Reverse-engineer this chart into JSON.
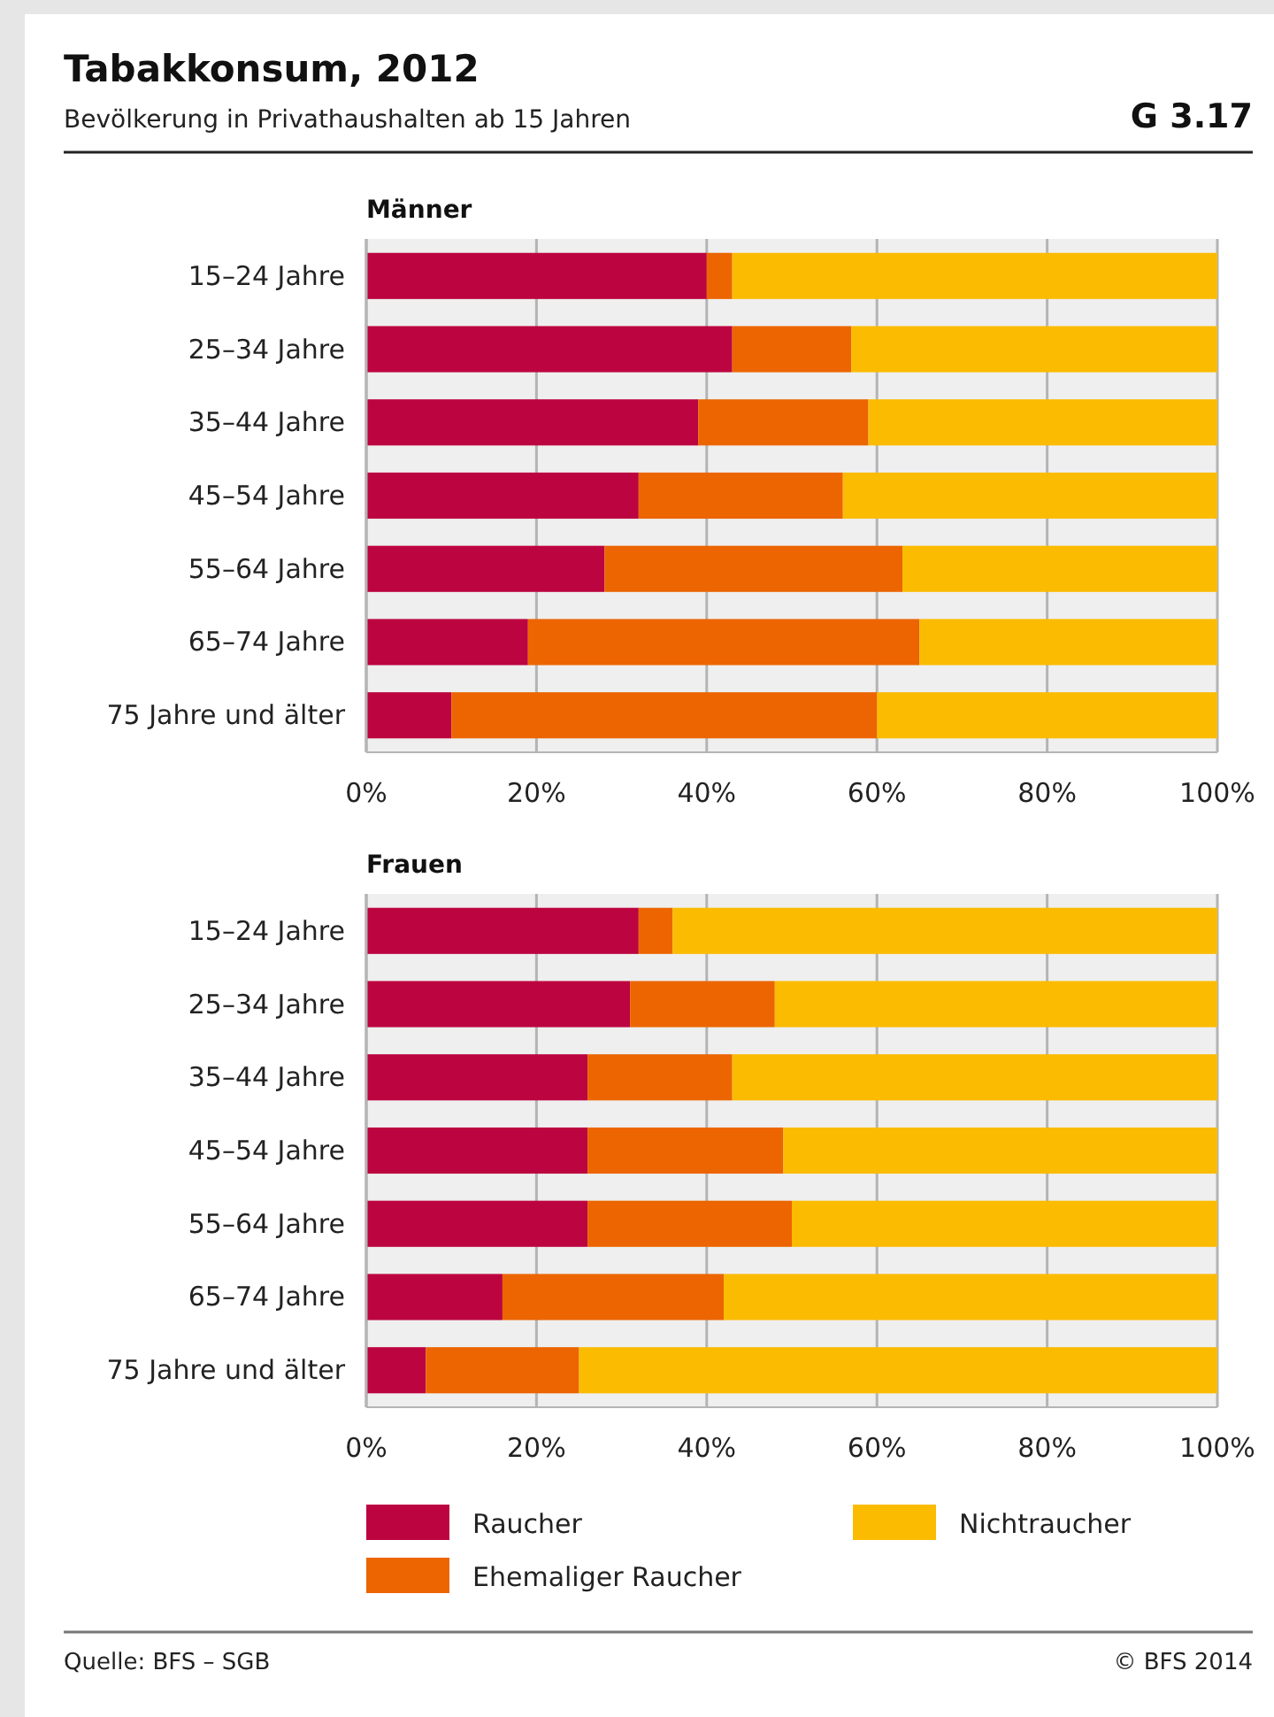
{
  "chart_data": [
    {
      "type": "other",
      "title": "Tabakkonsum, 2012",
      "subtitle": "Bevölkerung in Privathaushalten ab 15 Jahren",
      "annotations": [
        "G 3.17"
      ]
    },
    {
      "type": "bar",
      "orientation": "horizontal",
      "stacked": true,
      "title": "Männer",
      "categories": [
        "15–24 Jahre",
        "25–34 Jahre",
        "35–44 Jahre",
        "45–54 Jahre",
        "55–64 Jahre",
        "65–74 Jahre",
        "75 Jahre und älter"
      ],
      "series": [
        {
          "color": "#bc0440",
          "values": [
            40,
            43,
            39,
            32,
            28,
            19,
            10
          ]
        },
        {
          "color": "#ec6500",
          "values": [
            3,
            14,
            20,
            24,
            35,
            46,
            50
          ]
        },
        {
          "color": "#fbbb00",
          "values": [
            57,
            43,
            41,
            44,
            37,
            35,
            40
          ]
        }
      ],
      "xlim": [
        0,
        100
      ],
      "xticks": [
        {
          "value": 0,
          "label": "0%"
        },
        {
          "value": 20,
          "label": "20%"
        },
        {
          "value": 40,
          "label": "40%"
        },
        {
          "value": 60,
          "label": "60%"
        },
        {
          "value": 80,
          "label": "80%"
        },
        {
          "value": 100,
          "label": "100%"
        }
      ],
      "grid": "x",
      "legend": false
    },
    {
      "type": "bar",
      "orientation": "horizontal",
      "stacked": true,
      "title": "Frauen",
      "categories": [
        "15–24 Jahre",
        "25–34 Jahre",
        "35–44 Jahre",
        "45–54 Jahre",
        "55–64 Jahre",
        "65–74 Jahre",
        "75 Jahre und älter"
      ],
      "series": [
        {
          "name": "Raucher",
          "color": "#bc0440",
          "values": [
            32,
            31,
            26,
            26,
            26,
            16,
            7
          ]
        },
        {
          "name": "Ehemaliger Raucher",
          "color": "#ec6500",
          "values": [
            4,
            17,
            17,
            23,
            24,
            26,
            18
          ]
        },
        {
          "name": "Nichtraucher",
          "color": "#fbbb00",
          "values": [
            64,
            52,
            57,
            51,
            50,
            58,
            75
          ]
        }
      ],
      "xlim": [
        0,
        100
      ],
      "xticks": [
        {
          "value": 0,
          "label": "0%"
        },
        {
          "value": 20,
          "label": "20%"
        },
        {
          "value": 40,
          "label": "40%"
        },
        {
          "value": 60,
          "label": "60%"
        },
        {
          "value": 80,
          "label": "80%"
        },
        {
          "value": 100,
          "label": "100%"
        }
      ],
      "grid": "x",
      "legend": "bottom",
      "annotations": [
        "Quelle: BFS – SGB",
        "© BFS 2014"
      ]
    }
  ]
}
